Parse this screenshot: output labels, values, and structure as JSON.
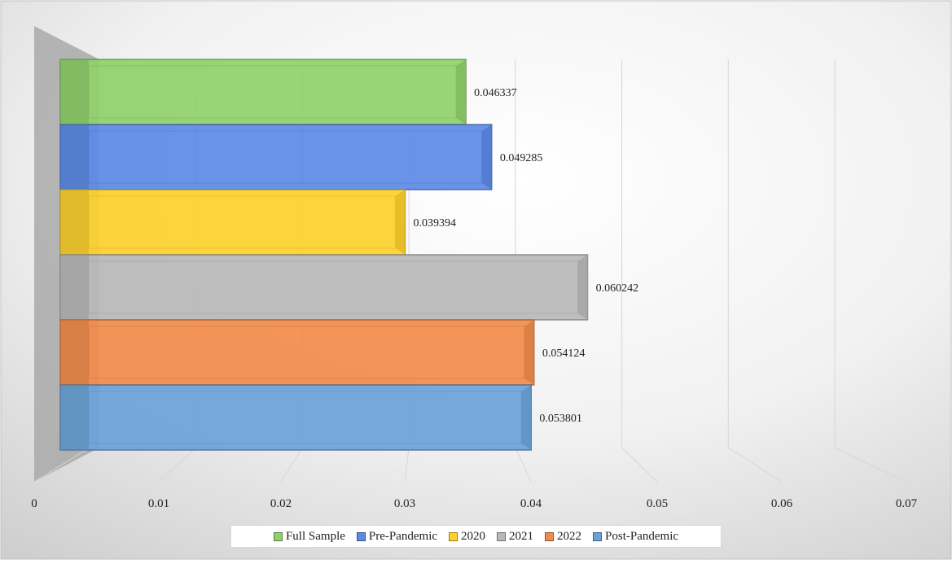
{
  "chart_data": {
    "type": "bar",
    "orientation": "horizontal",
    "style": "3d",
    "title": "",
    "xlabel": "",
    "ylabel": "",
    "xlim": [
      0,
      0.07
    ],
    "xticks": [
      0,
      0.01,
      0.02,
      0.03,
      0.04,
      0.05,
      0.06,
      0.07
    ],
    "xtick_labels": [
      "0",
      "0.01",
      "0.02",
      "0.03",
      "0.04",
      "0.05",
      "0.06",
      "0.07"
    ],
    "grid": true,
    "legend_position": "bottom",
    "series": [
      {
        "name": "Full Sample",
        "value": 0.046337,
        "label": "0.046337",
        "color": "#8fd16a"
      },
      {
        "name": "Pre-Pandemic",
        "value": 0.049285,
        "label": "0.049285",
        "color": "#5b8ae6"
      },
      {
        "name": "2020",
        "value": 0.039394,
        "label": "0.039394",
        "color": "#fdd02b"
      },
      {
        "name": "2021",
        "value": 0.060242,
        "label": "0.060242",
        "color": "#b8b8b8"
      },
      {
        "name": "2022",
        "value": 0.054124,
        "label": "0.054124",
        "color": "#f28b4a"
      },
      {
        "name": "Post-Pandemic",
        "value": 0.053801,
        "label": "0.053801",
        "color": "#6aa3d9"
      }
    ]
  }
}
